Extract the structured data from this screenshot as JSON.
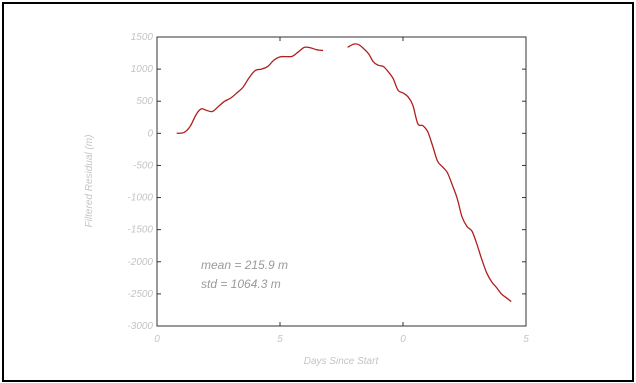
{
  "chart_data": {
    "type": "line",
    "title": "",
    "xlabel": "Days Since Start",
    "ylabel": "Filtered Residual (m)",
    "xlim": [
      0,
      3
    ],
    "ylim": [
      -3000,
      1500
    ],
    "x_ticks": [
      0,
      1,
      2,
      3
    ],
    "x_tick_labels": [
      "0",
      "5",
      "0",
      "5"
    ],
    "y_ticks": [
      1500,
      1000,
      500,
      0,
      -500,
      -1000,
      -1500,
      -2000,
      -2500,
      -3000
    ],
    "y_tick_labels": [
      "1500",
      "1000",
      "500",
      "0",
      "-500",
      "-1000",
      "-1500",
      "-2000",
      "-2500",
      "-3000"
    ],
    "grid": false,
    "line_color": "#b01e1e",
    "segments": [
      {
        "x": [
          0.16,
          0.22,
          0.27,
          0.32,
          0.36,
          0.4,
          0.45,
          0.5,
          0.55,
          0.6,
          0.65,
          0.7,
          0.75,
          0.8,
          0.85,
          0.9,
          0.95,
          1.0,
          1.05,
          1.1,
          1.15,
          1.2,
          1.25,
          1.3,
          1.35
        ],
        "y": [
          0,
          15,
          110,
          300,
          380,
          360,
          340,
          420,
          500,
          550,
          630,
          720,
          870,
          980,
          1000,
          1040,
          1140,
          1190,
          1195,
          1200,
          1270,
          1340,
          1330,
          1300,
          1290
        ]
      },
      {
        "x": [
          1.55,
          1.6,
          1.64,
          1.68,
          1.72,
          1.76,
          1.8,
          1.84,
          1.88,
          1.92,
          1.96,
          2.0,
          2.04,
          2.08,
          2.12,
          2.16,
          2.2,
          2.24,
          2.28,
          2.32,
          2.36,
          2.4,
          2.44,
          2.48,
          2.52,
          2.56,
          2.6,
          2.64,
          2.68,
          2.72,
          2.76,
          2.8,
          2.84,
          2.88
        ],
        "y": [
          1340,
          1390,
          1380,
          1320,
          1240,
          1110,
          1060,
          1040,
          960,
          850,
          670,
          630,
          570,
          440,
          150,
          120,
          30,
          -190,
          -430,
          -520,
          -610,
          -800,
          -1010,
          -1300,
          -1450,
          -1520,
          -1720,
          -1960,
          -2170,
          -2310,
          -2400,
          -2500,
          -2560,
          -2620
        ]
      }
    ],
    "annotations": [
      "mean  =  215.9 m",
      "std  =  1064.3 m"
    ]
  }
}
